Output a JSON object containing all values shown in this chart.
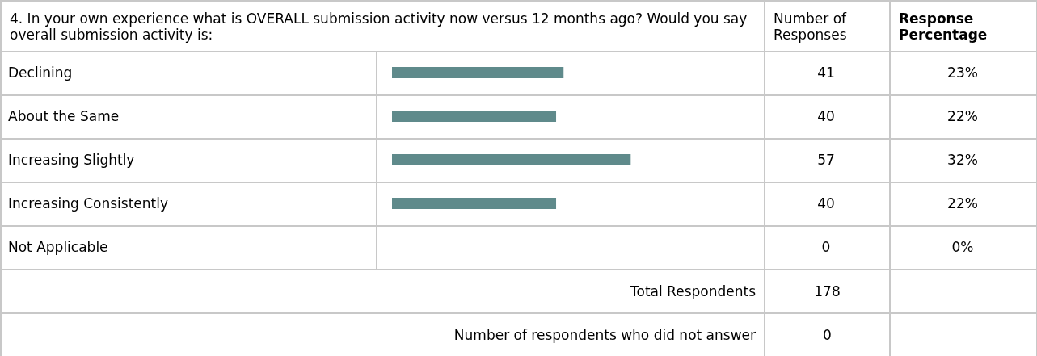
{
  "chart_data": {
    "type": "bar",
    "orientation": "horizontal",
    "title": "4. In your own experience what is OVERALL submission activity now versus 12 months ago? Would you say overall submission activity is:",
    "categories": [
      "Declining",
      "About the Same",
      "Increasing Slightly",
      "Increasing Consistently",
      "Not Applicable"
    ],
    "values": [
      23,
      22,
      32,
      22,
      0
    ],
    "color": "#5f8a8b",
    "value_labels": [
      "23%",
      "22%",
      "32%",
      "22%",
      "0%"
    ],
    "annotations": [
      "Number of Responses",
      "Response Percentage",
      "41",
      "40",
      "57",
      "40",
      "0",
      "Total Respondents",
      "178",
      "Number of respondents who did not answer",
      "0"
    ],
    "grid": false
  }
}
